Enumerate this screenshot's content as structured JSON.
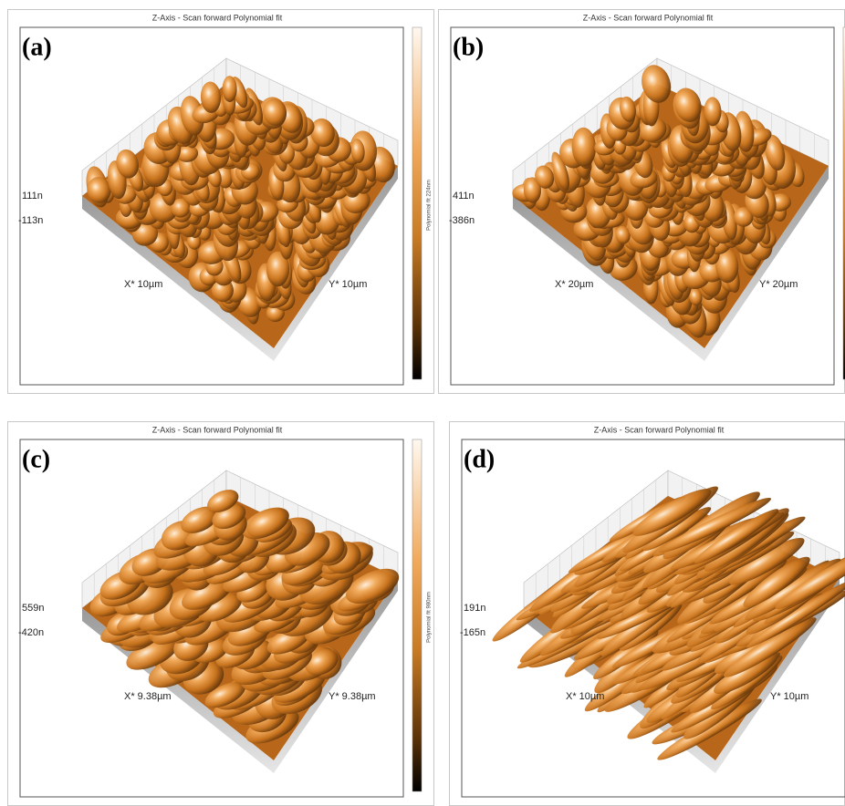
{
  "panels": [
    {
      "label": "(a)",
      "title": "Z-Axis - Scan forward   Polynomial fit",
      "z_max": "111n",
      "z_min": "-113n",
      "x_axis": "X* 10µm",
      "y_axis": "Y* 10µm",
      "colorbar_label": "Polynomial fit 224nm"
    },
    {
      "label": "(b)",
      "title": "Z-Axis - Scan forward   Polynomial fit",
      "z_max": "411n",
      "z_min": "-386n",
      "x_axis": "X* 20µm",
      "y_axis": "Y* 20µm"
    },
    {
      "label": "(c)",
      "title": "Z-Axis - Scan forward   Polynomial fit",
      "z_max": "559n",
      "z_min": "-420n",
      "x_axis": "X* 9.38µm",
      "y_axis": "Y* 9.38µm",
      "colorbar_label": "Polynomial fit 980nm"
    },
    {
      "label": "(d)",
      "title": "Z-Axis - Scan forward   Polynomial fit",
      "z_max": "191n",
      "z_min": "-165n",
      "x_axis": "X* 10µm",
      "y_axis": "Y* 10µm"
    }
  ]
}
